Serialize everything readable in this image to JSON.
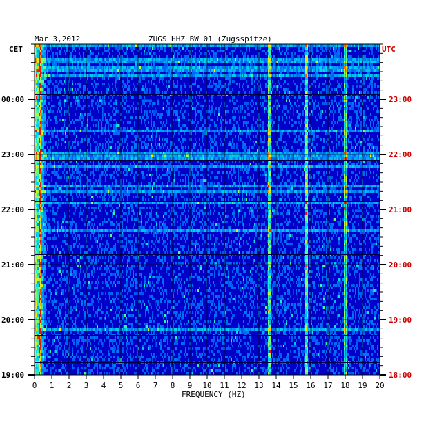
{
  "header": {
    "date": "Mar 3,2012",
    "station": "ZUGS HHZ BW 01 (Zugsspitze)"
  },
  "chart_data": {
    "type": "heatmap",
    "title": "ZUGS HHZ BW 01 (Zugsspitze)",
    "xlabel": "FREQUENCY (HZ)",
    "x_ticks": [
      "0",
      "1",
      "2",
      "3",
      "4",
      "5",
      "6",
      "7",
      "8",
      "9",
      "10",
      "11",
      "12",
      "13",
      "14",
      "15",
      "16",
      "17",
      "18",
      "19",
      "20"
    ],
    "xlim": [
      0,
      20
    ],
    "left_axis_label": "CET",
    "right_axis_label": "UTC",
    "left_ticks": [
      "00:00",
      "23:00",
      "22:00",
      "21:00",
      "20:00",
      "19:00"
    ],
    "right_ticks": [
      "23:00",
      "22:00",
      "21:00",
      "20:00",
      "19:00",
      "18:00"
    ],
    "time_range_hours": 5.33,
    "persistent_lines_hz": [
      0.3,
      13.6,
      15.7,
      18.0
    ],
    "colors": {
      "background": "#0000c8",
      "frame": "#000000",
      "utc_text": "#cc0000",
      "cet_text": "#000000"
    }
  }
}
